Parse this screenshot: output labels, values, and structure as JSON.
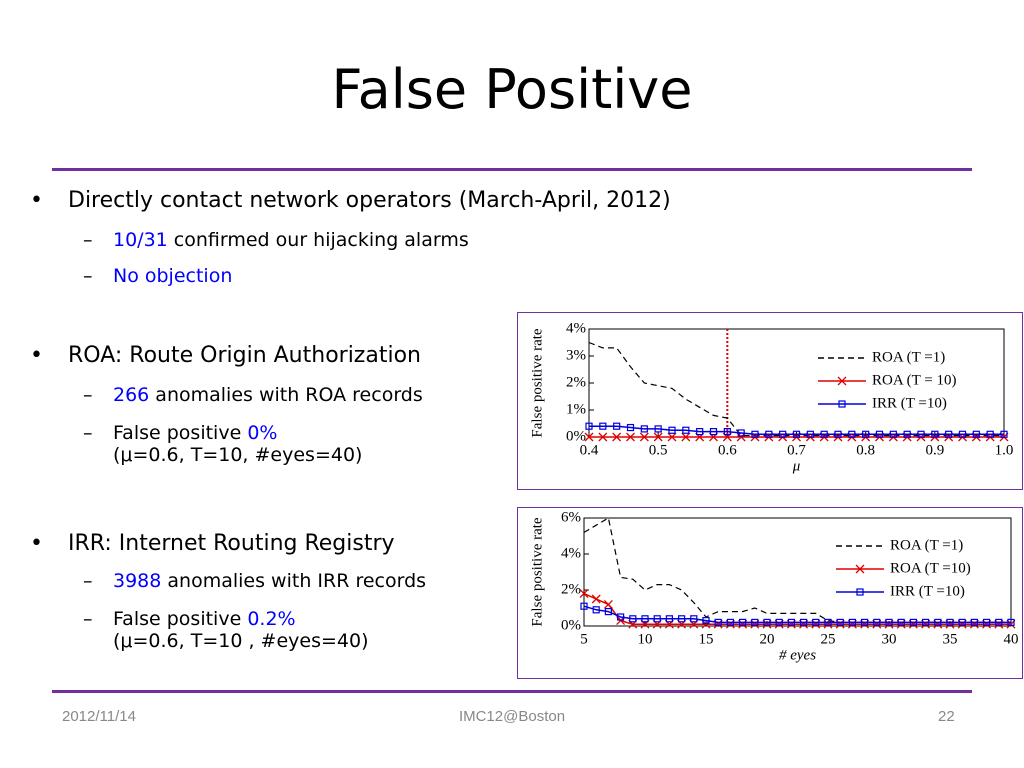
{
  "title": "False Positive",
  "bullets": [
    {
      "level": 1,
      "runs": [
        {
          "text": "Directly contact network operators (March-April, 2012)"
        }
      ]
    },
    {
      "level": 2,
      "runs": [
        {
          "text": "10/31",
          "highlight": true
        },
        {
          "text": " confirmed our hijacking alarms"
        }
      ]
    },
    {
      "level": 2,
      "runs": [
        {
          "text": "No objection",
          "highlight": true
        }
      ]
    },
    {
      "level": 1,
      "runs": [
        {
          "text": "ROA: Route Origin Authorization"
        }
      ]
    },
    {
      "level": 2,
      "runs": [
        {
          "text": "266",
          "highlight": true
        },
        {
          "text": " anomalies with ROA records"
        }
      ]
    },
    {
      "level": 2,
      "runs": [
        {
          "text": "False positive "
        },
        {
          "text": "0%",
          "highlight": true
        }
      ],
      "note": "(μ=0.6, T=10, #eyes=40)"
    },
    {
      "level": 1,
      "runs": [
        {
          "text": "IRR: Internet Routing Registry"
        }
      ]
    },
    {
      "level": 2,
      "runs": [
        {
          "text": "3988",
          "highlight": true
        },
        {
          "text": " anomalies with IRR records"
        }
      ]
    },
    {
      "level": 2,
      "runs": [
        {
          "text": "False positive "
        },
        {
          "text": "0.2%",
          "highlight": true
        }
      ],
      "note": "(μ=0.6, T=10 , #eyes=40)"
    }
  ],
  "highlight_color": "#0000ff",
  "footer": {
    "date": "2012/11/14",
    "center": "IMC12@Boston",
    "page": "22"
  },
  "chart_data": [
    {
      "type": "line",
      "y_label": "False positive rate",
      "x_label": "μ",
      "x": [
        0.4,
        0.42,
        0.44,
        0.46,
        0.48,
        0.5,
        0.52,
        0.54,
        0.56,
        0.58,
        0.6,
        0.62,
        0.64,
        0.66,
        0.68,
        0.7,
        0.72,
        0.74,
        0.76,
        0.78,
        0.8,
        0.82,
        0.84,
        0.86,
        0.88,
        0.9,
        0.92,
        0.94,
        0.96,
        0.98,
        1.0
      ],
      "xlim": [
        0.4,
        1.0
      ],
      "xticks": [
        0.4,
        0.5,
        0.6,
        0.7,
        0.8,
        0.9,
        {
          "value": 1,
          "label": "1.0"
        }
      ],
      "ylim": [
        0,
        4
      ],
      "yticks": [
        {
          "value": 0,
          "label": "0%"
        },
        {
          "value": 1,
          "label": "1%"
        },
        {
          "value": 2,
          "label": "2%"
        },
        {
          "value": 3,
          "label": "3%"
        },
        {
          "value": 4,
          "label": "4%"
        }
      ],
      "vline": 0.6,
      "vline_color": "#e00000",
      "series": [
        {
          "name": "ROA (T =1)",
          "color": "#000000",
          "dash": true,
          "marker": "none",
          "values": [
            3.5,
            3.3,
            3.3,
            2.6,
            2.0,
            1.9,
            1.8,
            1.4,
            1.1,
            0.8,
            0.7,
            0.05,
            0.05,
            0.05,
            0.05,
            0.05,
            0.05,
            0.05,
            0.05,
            0.05,
            0.05,
            0.05,
            0.05,
            0.05,
            0.05,
            0.05,
            0.05,
            0.05,
            0.05,
            0.05,
            0.05
          ]
        },
        {
          "name": "ROA (T = 10)",
          "color": "#e00000",
          "dash": false,
          "marker": "x",
          "values": [
            0,
            0,
            0,
            0,
            0,
            0,
            0,
            0,
            0,
            0,
            0,
            0,
            0,
            0,
            0,
            0,
            0,
            0,
            0,
            0,
            0,
            0,
            0,
            0,
            0,
            0,
            0,
            0,
            0,
            0,
            0
          ]
        },
        {
          "name": "IRR (T =10)",
          "color": "#0000e0",
          "dash": false,
          "marker": "square",
          "values": [
            0.4,
            0.4,
            0.4,
            0.35,
            0.3,
            0.3,
            0.25,
            0.25,
            0.2,
            0.2,
            0.2,
            0.15,
            0.1,
            0.1,
            0.1,
            0.1,
            0.1,
            0.1,
            0.1,
            0.1,
            0.1,
            0.1,
            0.1,
            0.1,
            0.1,
            0.1,
            0.1,
            0.1,
            0.1,
            0.1,
            0.1
          ]
        }
      ]
    },
    {
      "type": "line",
      "y_label": "False positive rate",
      "x_label": "# eyes",
      "x": [
        5,
        6,
        7,
        8,
        9,
        10,
        11,
        12,
        13,
        14,
        15,
        16,
        17,
        18,
        19,
        20,
        21,
        22,
        23,
        24,
        25,
        26,
        27,
        28,
        29,
        30,
        31,
        32,
        33,
        34,
        35,
        36,
        37,
        38,
        39,
        40
      ],
      "xlim": [
        5,
        40
      ],
      "xticks": [
        5,
        10,
        15,
        20,
        25,
        30,
        35,
        40
      ],
      "ylim": [
        0,
        6
      ],
      "yticks": [
        {
          "value": 0,
          "label": "0%"
        },
        {
          "value": 2,
          "label": "2%"
        },
        {
          "value": 4,
          "label": "4%"
        },
        {
          "value": 6,
          "label": "6%"
        }
      ],
      "series": [
        {
          "name": "ROA (T =1)",
          "color": "#000000",
          "dash": true,
          "marker": "none",
          "values": [
            5.2,
            5.6,
            6.0,
            2.7,
            2.6,
            2.0,
            2.3,
            2.3,
            2.0,
            1.3,
            0.5,
            0.8,
            0.8,
            0.8,
            1.0,
            0.7,
            0.7,
            0.7,
            0.7,
            0.7,
            0.3,
            0.2,
            0.2,
            0.2,
            0.2,
            0.2,
            0.2,
            0.2,
            0.2,
            0.2,
            0.2,
            0.2,
            0.2,
            0.2,
            0.2,
            0.2
          ]
        },
        {
          "name": "ROA (T =10)",
          "color": "#e00000",
          "dash": false,
          "marker": "x",
          "values": [
            1.8,
            1.5,
            1.2,
            0.3,
            0.1,
            0.1,
            0.1,
            0.1,
            0.1,
            0.1,
            0.1,
            0.1,
            0.1,
            0.1,
            0.1,
            0.1,
            0.1,
            0.1,
            0.1,
            0.1,
            0.1,
            0.1,
            0.1,
            0.1,
            0.1,
            0.1,
            0.1,
            0.1,
            0.1,
            0.1,
            0.1,
            0.1,
            0.1,
            0.1,
            0.1,
            0.1
          ]
        },
        {
          "name": "IRR (T =10)",
          "color": "#0000e0",
          "dash": false,
          "marker": "square",
          "values": [
            1.1,
            0.9,
            0.8,
            0.5,
            0.4,
            0.4,
            0.4,
            0.4,
            0.4,
            0.4,
            0.3,
            0.2,
            0.2,
            0.2,
            0.2,
            0.2,
            0.2,
            0.2,
            0.2,
            0.2,
            0.2,
            0.2,
            0.2,
            0.2,
            0.2,
            0.2,
            0.2,
            0.2,
            0.2,
            0.2,
            0.2,
            0.2,
            0.2,
            0.2,
            0.2,
            0.2
          ]
        }
      ]
    }
  ]
}
